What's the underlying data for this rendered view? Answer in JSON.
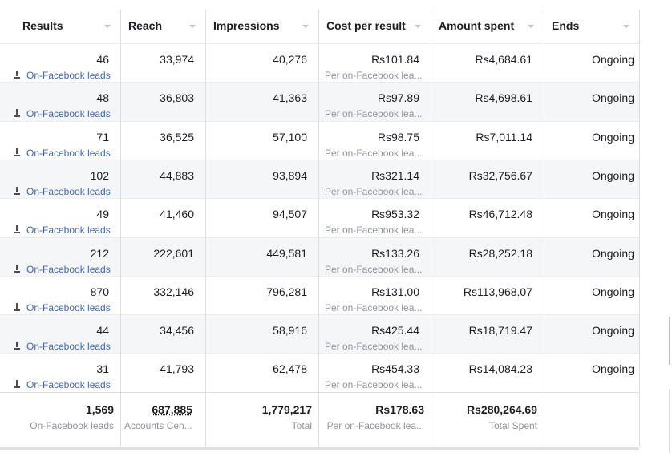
{
  "table": {
    "columns": [
      "Results",
      "Reach",
      "Impressions",
      "Cost per result",
      "Amount spent",
      "Ends"
    ],
    "rows": [
      {
        "results": "46",
        "results_label": "On-Facebook leads",
        "reach": "33,974",
        "impressions": "40,276",
        "cost": "Rs101.84",
        "cost_label": "Per on-Facebook lea...",
        "amount": "Rs4,684.61",
        "ends": "Ongoing"
      },
      {
        "results": "48",
        "results_label": "On-Facebook leads",
        "reach": "36,803",
        "impressions": "41,363",
        "cost": "Rs97.89",
        "cost_label": "Per on-Facebook lea...",
        "amount": "Rs4,698.61",
        "ends": "Ongoing"
      },
      {
        "results": "71",
        "results_label": "On-Facebook leads",
        "reach": "36,525",
        "impressions": "57,100",
        "cost": "Rs98.75",
        "cost_label": "Per on-Facebook lea...",
        "amount": "Rs7,011.14",
        "ends": "Ongoing"
      },
      {
        "results": "102",
        "results_label": "On-Facebook leads",
        "reach": "44,883",
        "impressions": "93,894",
        "cost": "Rs321.14",
        "cost_label": "Per on-Facebook lea...",
        "amount": "Rs32,756.67",
        "ends": "Ongoing"
      },
      {
        "results": "49",
        "results_label": "On-Facebook leads",
        "reach": "41,460",
        "impressions": "94,507",
        "cost": "Rs953.32",
        "cost_label": "Per on-Facebook lea...",
        "amount": "Rs46,712.48",
        "ends": "Ongoing"
      },
      {
        "results": "212",
        "results_label": "On-Facebook leads",
        "reach": "222,601",
        "impressions": "449,581",
        "cost": "Rs133.26",
        "cost_label": "Per on-Facebook lea...",
        "amount": "Rs28,252.18",
        "ends": "Ongoing"
      },
      {
        "results": "870",
        "results_label": "On-Facebook leads",
        "reach": "332,146",
        "impressions": "796,281",
        "cost": "Rs131.00",
        "cost_label": "Per on-Facebook lea...",
        "amount": "Rs113,968.07",
        "ends": "Ongoing"
      },
      {
        "results": "44",
        "results_label": "On-Facebook leads",
        "reach": "34,456",
        "impressions": "58,916",
        "cost": "Rs425.44",
        "cost_label": "Per on-Facebook lea...",
        "amount": "Rs18,719.47",
        "ends": "Ongoing"
      },
      {
        "results": "31",
        "results_label": "On-Facebook leads",
        "reach": "41,793",
        "impressions": "62,478",
        "cost": "Rs454.33",
        "cost_label": "Per on-Facebook lea...",
        "amount": "Rs14,084.23",
        "ends": "Ongoing"
      }
    ],
    "totals": {
      "results": "1,569",
      "results_label": "On-Facebook leads",
      "reach": "687,885",
      "reach_label": "Accounts Cen...",
      "impressions": "1,779,217",
      "impressions_label": "Total",
      "cost": "Rs178.63",
      "cost_label": "Per on-Facebook lea...",
      "amount": "Rs280,264.69",
      "amount_label": "Total Spent"
    }
  }
}
